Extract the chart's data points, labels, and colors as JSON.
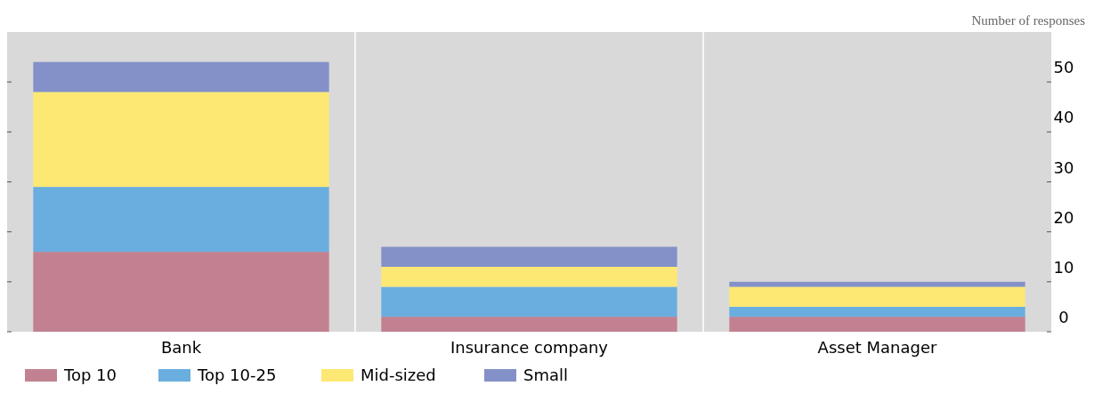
{
  "chart_data": {
    "type": "bar",
    "stacked": true,
    "ylabel": "Number of responses",
    "categories": [
      "Bank",
      "Insurance company",
      "Asset Manager"
    ],
    "series": [
      {
        "name": "Top 10",
        "color": "#c28190",
        "values": [
          16,
          3,
          3
        ]
      },
      {
        "name": "Top 10-25",
        "color": "#6aaee0",
        "values": [
          13,
          6,
          2
        ]
      },
      {
        "name": "Mid-sized",
        "color": "#fde874",
        "values": [
          19,
          4,
          4
        ]
      },
      {
        "name": "Small",
        "color": "#8391c8",
        "values": [
          6,
          4,
          1
        ]
      }
    ],
    "ylim": [
      0,
      60
    ],
    "yticks": [
      0,
      10,
      20,
      30,
      40,
      50
    ],
    "grid": "x",
    "legend": "bottom"
  }
}
